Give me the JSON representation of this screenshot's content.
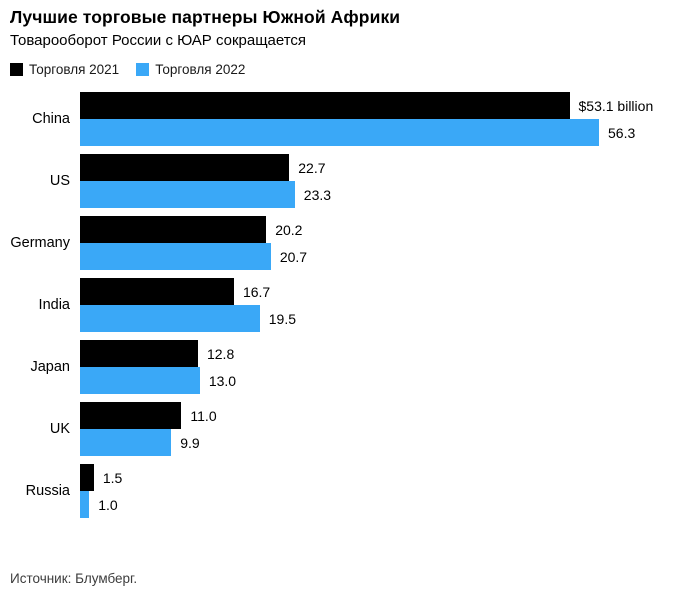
{
  "header": {
    "title": "Лучшие торговые партнеры Южной Африки",
    "subtitle": "Товарооборот России с ЮАР сокращается"
  },
  "legend": [
    {
      "label": "Торговля 2021",
      "color": "#000000"
    },
    {
      "label": "Торговля 2022",
      "color": "#3aa8f7"
    }
  ],
  "source": "Источник: Блумберг.",
  "colors": {
    "bar_2021": "#000000",
    "bar_2022": "#3aa8f7",
    "background": "#ffffff"
  },
  "chart_data": {
    "type": "bar",
    "orientation": "horizontal",
    "title": "Лучшие торговые партнеры Южной Африки",
    "subtitle": "Товарооборот России с ЮАР сокращается",
    "categories": [
      "China",
      "US",
      "Germany",
      "India",
      "Japan",
      "UK",
      "Russia"
    ],
    "series": [
      {
        "name": "Торговля 2021",
        "color": "#000000",
        "values": [
          53.1,
          22.7,
          20.2,
          16.7,
          12.8,
          11.0,
          1.5
        ],
        "labels": [
          "$53.1 billion",
          "22.7",
          "20.2",
          "16.7",
          "12.8",
          "11.0",
          "1.5"
        ]
      },
      {
        "name": "Торговля 2022",
        "color": "#3aa8f7",
        "values": [
          56.3,
          23.3,
          20.7,
          19.5,
          13.0,
          9.9,
          1.0
        ],
        "labels": [
          "56.3",
          "23.3",
          "20.7",
          "19.5",
          "13.0",
          "9.9",
          "1.0"
        ]
      }
    ],
    "value_axis_max": 56.3,
    "grid": false,
    "legend_position": "top",
    "value_labels_visible": true
  }
}
